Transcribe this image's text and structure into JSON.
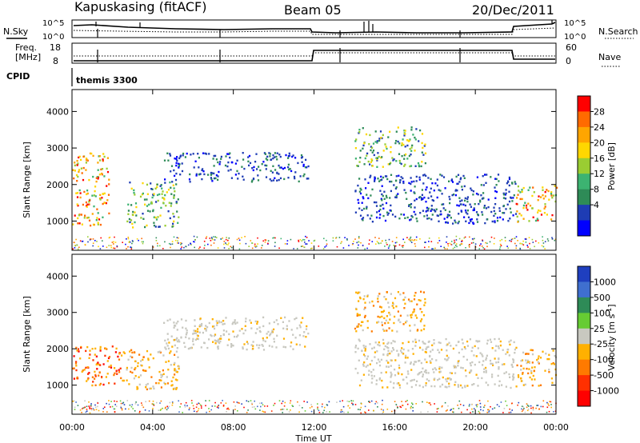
{
  "header": {
    "station": "Kapuskasing (fitACF)",
    "beam": "Beam 05",
    "date": "20/Dec/2011"
  },
  "noise_panel": {
    "left_label": "N.Sky",
    "right_label": "N.Search",
    "left_ticks": [
      "10^5",
      "10^0"
    ],
    "right_ticks": [
      "10^5",
      "10^0"
    ]
  },
  "freq_panel": {
    "left_label_1": "Freq.",
    "left_label_2": "[MHz]",
    "left_ticks": [
      "18",
      "8"
    ],
    "right_label": "Nave",
    "right_ticks": [
      "60",
      "0"
    ]
  },
  "cpid_panel": {
    "label": "CPID",
    "mode": "themis 3300"
  },
  "chart_data": [
    {
      "type": "heatmap",
      "quantity": "power",
      "xlabel": "Time UT",
      "ylabel": "Slant Range [km]",
      "xlim": [
        0,
        24
      ],
      "ylim": [
        200,
        4600
      ],
      "x_ticks": [
        "00:00",
        "04:00",
        "08:00",
        "12:00",
        "16:00",
        "20:00",
        "00:00"
      ],
      "y_ticks": [
        1000,
        2000,
        3000,
        4000
      ],
      "colorbar": {
        "label": "Power [dB]",
        "ticks": [
          "28",
          "24",
          "20",
          "16",
          "12",
          "8",
          "4"
        ],
        "colors": [
          "#ff0000",
          "#ff6a00",
          "#ffa500",
          "#ffd700",
          "#9acd32",
          "#3cb371",
          "#2e8b57",
          "#1e3cb4",
          "#0000ff"
        ]
      },
      "regions": [
        {
          "t0": 0.0,
          "t1": 1.8,
          "r0": 900,
          "r1": 2900,
          "level": "medium-high"
        },
        {
          "t0": 2.7,
          "t1": 5.3,
          "r0": 850,
          "r1": 2100,
          "level": "medium"
        },
        {
          "t0": 4.5,
          "t1": 11.7,
          "r0": 2100,
          "r1": 2900,
          "level": "low"
        },
        {
          "t0": 14.0,
          "t1": 22.0,
          "r0": 950,
          "r1": 2300,
          "level": "low"
        },
        {
          "t0": 14.0,
          "t1": 17.5,
          "r0": 2500,
          "r1": 3600,
          "level": "medium"
        },
        {
          "t0": 22.0,
          "t1": 24.0,
          "r0": 1000,
          "r1": 2000,
          "level": "medium-high"
        }
      ]
    },
    {
      "type": "heatmap",
      "quantity": "velocity",
      "xlabel": "Time UT",
      "ylabel": "Slant Range [km]",
      "xlim": [
        0,
        24
      ],
      "ylim": [
        200,
        4600
      ],
      "x_ticks": [
        "00:00",
        "04:00",
        "08:00",
        "12:00",
        "16:00",
        "20:00",
        "00:00"
      ],
      "y_ticks": [
        1000,
        2000,
        3000,
        4000
      ],
      "colorbar": {
        "label": "Velocity [m s^-1]",
        "ticks": [
          "1000",
          "500",
          "100",
          "25",
          "-25",
          "-100",
          "-500",
          "-1000"
        ],
        "colors": [
          "#1f3fbf",
          "#3f6fcf",
          "#2e8b57",
          "#66cc33",
          "#c8c8c0",
          "#ffb000",
          "#ff7a00",
          "#ff3000",
          "#ff0000"
        ]
      },
      "regions": [
        {
          "t0": 0.0,
          "t1": 2.5,
          "r0": 1000,
          "r1": 2100,
          "level": "-500"
        },
        {
          "t0": 2.5,
          "t1": 5.3,
          "r0": 900,
          "r1": 2000,
          "level": "-100"
        },
        {
          "t0": 4.5,
          "t1": 11.7,
          "r0": 2000,
          "r1": 2900,
          "level": "-25"
        },
        {
          "t0": 14.0,
          "t1": 22.0,
          "r0": 950,
          "r1": 2300,
          "level": "-25"
        },
        {
          "t0": 14.0,
          "t1": 17.5,
          "r0": 2500,
          "r1": 3600,
          "level": "-100"
        },
        {
          "t0": 22.0,
          "t1": 24.0,
          "r0": 1000,
          "r1": 2000,
          "level": "-100"
        }
      ]
    }
  ]
}
